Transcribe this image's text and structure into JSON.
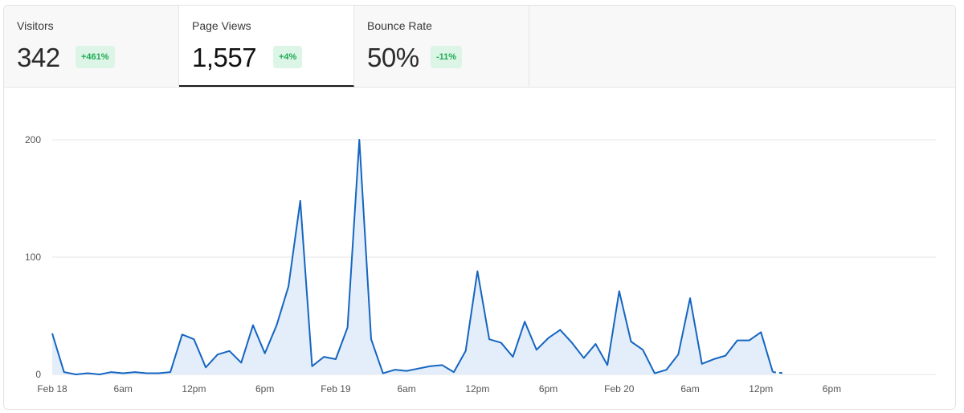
{
  "tabs": [
    {
      "label": "Visitors",
      "value": "342",
      "change": "+461%"
    },
    {
      "label": "Page Views",
      "value": "1,557",
      "change": "+4%"
    },
    {
      "label": "Bounce Rate",
      "value": "50%",
      "change": "-11%"
    }
  ],
  "colors": {
    "line": "#1565c0",
    "fill": "#e3eefa",
    "grid": "#e6e6e6",
    "badge_bg": "#ddf5e6",
    "badge_text": "#1faa55"
  },
  "chart_data": {
    "type": "area",
    "title": "",
    "xlabel": "",
    "ylabel": "",
    "ylim": [
      0,
      200
    ],
    "grid": "horizontal",
    "y_ticks": [
      "0",
      "100",
      "200"
    ],
    "x_ticks": [
      {
        "x": 0,
        "label": "Feb 18"
      },
      {
        "x": 6,
        "label": "6am"
      },
      {
        "x": 12,
        "label": "12pm"
      },
      {
        "x": 18,
        "label": "6pm"
      },
      {
        "x": 24,
        "label": "Feb 19"
      },
      {
        "x": 30,
        "label": "6am"
      },
      {
        "x": 36,
        "label": "12pm"
      },
      {
        "x": 42,
        "label": "6pm"
      },
      {
        "x": 48,
        "label": "Feb 20"
      },
      {
        "x": 54,
        "label": "6am"
      },
      {
        "x": 60,
        "label": "12pm"
      },
      {
        "x": 66,
        "label": "6pm"
      }
    ],
    "x_max": 71,
    "series": [
      {
        "values": [
          35,
          2,
          0,
          1,
          0,
          2,
          1,
          2,
          1,
          1,
          2,
          34,
          30,
          6,
          17,
          20,
          10,
          42,
          18,
          42,
          75,
          148,
          7,
          15,
          13,
          40,
          200,
          30,
          1,
          4,
          3,
          5,
          7,
          8,
          2,
          20,
          88,
          30,
          27,
          15,
          45,
          21,
          31,
          38,
          27,
          14,
          26,
          8,
          71,
          28,
          21,
          1,
          4,
          17,
          65,
          9,
          13,
          16,
          29,
          29,
          36,
          2
        ],
        "projected": [
          [
            61,
            2
          ],
          [
            62,
            1
          ]
        ]
      }
    ]
  }
}
